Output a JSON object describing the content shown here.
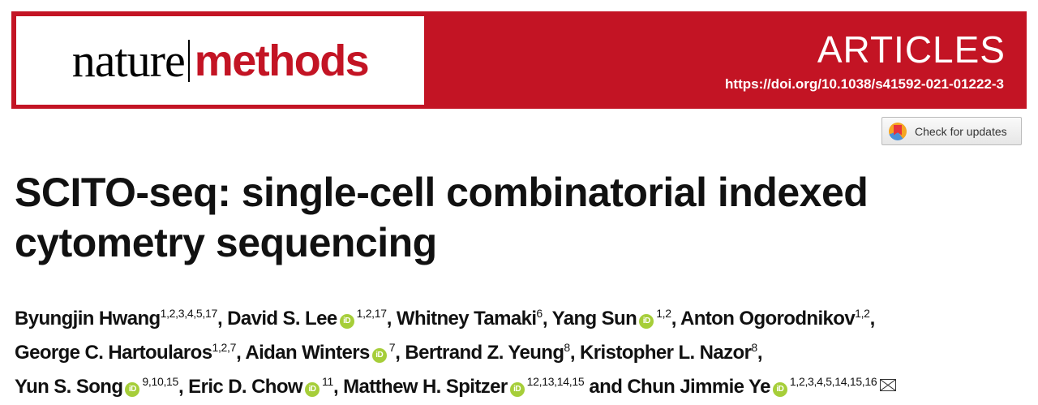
{
  "header": {
    "journal_name_part1": "nature",
    "journal_name_part2": "methods",
    "article_type": "ARTICLES",
    "doi": "https://doi.org/10.1038/s41592-021-01222-3",
    "brand_color": "#c31424"
  },
  "check_for_updates": {
    "label": "Check for updates"
  },
  "title": "SCITO-seq: single-cell combinatorial indexed cytometry sequencing",
  "authors": {
    "orcid_label": "iD",
    "orcid_color": "#a6ce39",
    "lines": [
      [
        {
          "name": "Byungjin Hwang",
          "sup": "1,2,3,4,5,17",
          "orcid": false,
          "sep": ", "
        },
        {
          "name": "David S. Lee",
          "sup": "1,2,17",
          "orcid": true,
          "sep": ", "
        },
        {
          "name": "Whitney Tamaki",
          "sup": "6",
          "orcid": false,
          "sep": ", "
        },
        {
          "name": "Yang Sun",
          "sup": "1,2",
          "orcid": true,
          "sep": ", "
        },
        {
          "name": "Anton Ogorodnikov",
          "sup": "1,2",
          "orcid": false,
          "sep": ","
        }
      ],
      [
        {
          "name": "George C. Hartoularos",
          "sup": "1,2,7",
          "orcid": false,
          "sep": ", "
        },
        {
          "name": "Aidan Winters",
          "sup": "7",
          "orcid": true,
          "sep": ", "
        },
        {
          "name": "Bertrand Z. Yeung",
          "sup": "8",
          "orcid": false,
          "sep": ", "
        },
        {
          "name": "Kristopher L. Nazor",
          "sup": "8",
          "orcid": false,
          "sep": ","
        }
      ],
      [
        {
          "name": "Yun S. Song",
          "sup": "9,10,15",
          "orcid": true,
          "sep": ", "
        },
        {
          "name": "Eric D. Chow",
          "sup": "11",
          "orcid": true,
          "sep": ", "
        },
        {
          "name": "Matthew H. Spitzer",
          "sup": "12,13,14,15",
          "orcid": true,
          "sep": " and "
        },
        {
          "name": "Chun Jimmie Ye",
          "sup": "1,2,3,4,5,14,15,16",
          "orcid": true,
          "sep": "",
          "corresponding": true
        }
      ]
    ]
  }
}
